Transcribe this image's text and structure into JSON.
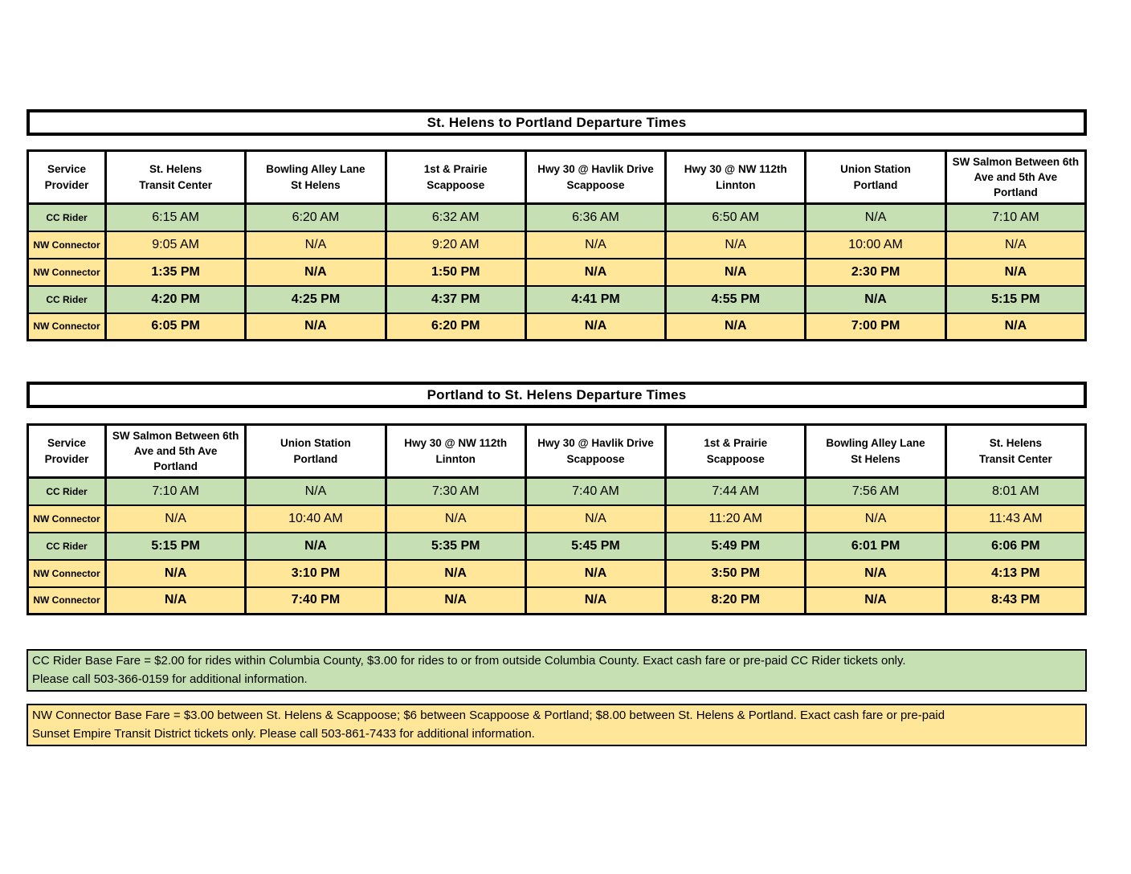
{
  "colors": {
    "cc_rider_row_green": "#c6e0b4",
    "nw_connector_row_yellow": "#ffe699",
    "border_black": "#000000",
    "header_white": "#ffffff"
  },
  "sections": {
    "table1": {
      "title": "St. Helens to Portland Departure Times",
      "columns": [
        "Service\nProvider",
        "St. Helens\nTransit Center",
        "Bowling Alley Lane\nSt Helens",
        "1st & Prairie\nScappoose",
        "Hwy 30 @ Havlik Drive\nScappoose",
        "Hwy 30 @ NW 112th\nLinnton",
        "Union Station\nPortland",
        "SW Salmon Between 6th\nAve and 5th Ave\nPortland"
      ],
      "rows": [
        {
          "provider": "CC Rider",
          "style": "green",
          "bold": false,
          "times": [
            "6:15 AM",
            "6:20 AM",
            "6:32 AM",
            "6:36 AM",
            "6:50 AM",
            "N/A",
            "7:10 AM"
          ]
        },
        {
          "provider": "NW Connector",
          "style": "yellow",
          "bold": false,
          "times": [
            "9:05 AM",
            "N/A",
            "9:20 AM",
            "N/A",
            "N/A",
            "10:00 AM",
            "N/A"
          ]
        },
        {
          "provider": "NW Connector",
          "style": "yellow",
          "bold": true,
          "times": [
            "1:35 PM",
            "N/A",
            "1:50 PM",
            "N/A",
            "N/A",
            "2:30 PM",
            "N/A"
          ]
        },
        {
          "provider": "CC Rider",
          "style": "green",
          "bold": true,
          "times": [
            "4:20 PM",
            "4:25 PM",
            "4:37 PM",
            "4:41 PM",
            "4:55 PM",
            "N/A",
            "5:15 PM"
          ]
        },
        {
          "provider": "NW Connector",
          "style": "yellow",
          "bold": true,
          "times": [
            "6:05 PM",
            "N/A",
            "6:20 PM",
            "N/A",
            "N/A",
            "7:00 PM",
            "N/A"
          ]
        }
      ]
    },
    "table2": {
      "title": "Portland to St. Helens Departure Times",
      "columns": [
        "Service\nProvider",
        "SW Salmon Between 6th\nAve and 5th Ave\nPortland",
        "Union Station\nPortland",
        "Hwy 30 @ NW 112th\nLinnton",
        "Hwy 30 @ Havlik Drive\nScappoose",
        "1st & Prairie\nScappoose",
        "Bowling Alley Lane\nSt Helens",
        "St. Helens\nTransit Center"
      ],
      "rows": [
        {
          "provider": "CC Rider",
          "style": "green",
          "bold": false,
          "times": [
            "7:10 AM",
            "N/A",
            "7:30 AM",
            "7:40 AM",
            "7:44 AM",
            "7:56 AM",
            "8:01 AM"
          ]
        },
        {
          "provider": "NW Connector",
          "style": "yellow",
          "bold": false,
          "times": [
            "N/A",
            "10:40 AM",
            "N/A",
            "N/A",
            "11:20 AM",
            "N/A",
            "11:43 AM"
          ]
        },
        {
          "provider": "CC Rider",
          "style": "green",
          "bold": true,
          "times": [
            "5:15 PM",
            "N/A",
            "5:35 PM",
            "5:45 PM",
            "5:49 PM",
            "6:01 PM",
            "6:06 PM"
          ]
        },
        {
          "provider": "NW Connector",
          "style": "yellow",
          "bold": true,
          "times": [
            "N/A",
            "3:10 PM",
            "N/A",
            "N/A",
            "3:50 PM",
            "N/A",
            "4:13 PM"
          ]
        },
        {
          "provider": "NW Connector",
          "style": "yellow",
          "bold": true,
          "times": [
            "N/A",
            "7:40 PM",
            "N/A",
            "N/A",
            "8:20 PM",
            "N/A",
            "8:43 PM"
          ]
        }
      ]
    },
    "notes": [
      {
        "style": "green",
        "text": "CC Rider Base Fare = $2.00 for rides within Columbia County, $3.00 for rides to or from outside Columbia County.  Exact cash fare or pre-paid CC Rider tickets only.\nPlease call 503-366-0159 for additional information."
      },
      {
        "style": "yellow",
        "text": "NW Connector Base Fare = $3.00 between St. Helens & Scappoose; $6 between Scappoose & Portland; $8.00 between St. Helens & Portland.  Exact cash fare or pre-paid\nSunset Empire Transit District tickets only.  Please call 503-861-7433 for additional information."
      }
    ]
  }
}
